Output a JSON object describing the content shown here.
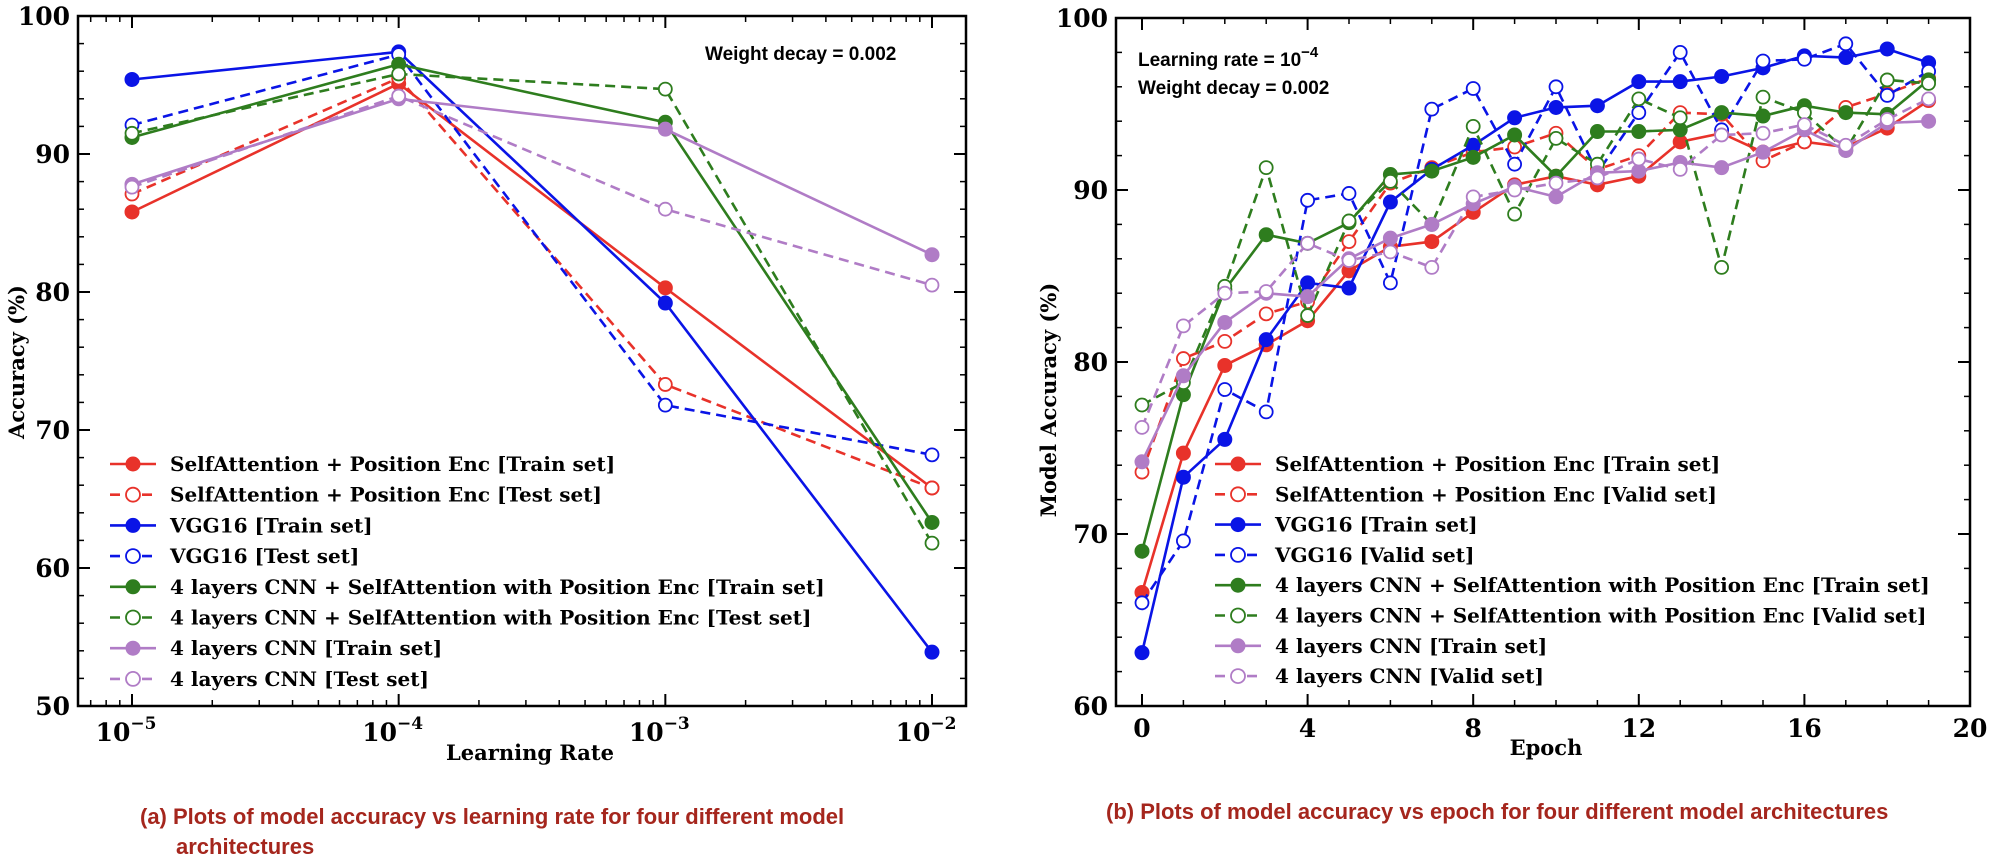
{
  "chart_data": [
    {
      "type": "line",
      "xscale": "log",
      "xlabel": "Learning Rate",
      "ylabel": "Accuracy (%)",
      "x": [
        1e-05,
        0.0001,
        0.001,
        0.01
      ],
      "xticks": [
        {
          "base": "10",
          "exp": "−5"
        },
        {
          "base": "10",
          "exp": "−4"
        },
        {
          "base": "10",
          "exp": "−3"
        },
        {
          "base": "10",
          "exp": "−2"
        }
      ],
      "yticks": [
        "50",
        "60",
        "70",
        "80",
        "90",
        "100"
      ],
      "ylim": [
        50,
        100
      ],
      "annotation": "Weight decay = 0.002",
      "legend_position": "lower-left",
      "series": [
        {
          "name": "SelfAttention + Position Enc [Train set]",
          "color": "#e8322a",
          "dashed": false,
          "values": [
            85.8,
            95.1,
            80.3,
            65.8
          ]
        },
        {
          "name": "SelfAttention + Position Enc [Test set]",
          "color": "#e8322a",
          "dashed": true,
          "values": [
            87.1,
            95.5,
            73.3,
            65.8
          ]
        },
        {
          "name": "VGG16 [Train set]",
          "color": "#0a14e6",
          "dashed": false,
          "values": [
            95.4,
            97.4,
            79.2,
            53.9
          ]
        },
        {
          "name": "VGG16 [Test set]",
          "color": "#0a14e6",
          "dashed": true,
          "values": [
            92.1,
            97.2,
            71.8,
            68.2
          ]
        },
        {
          "name": "4 layers CNN + SelfAttention with Position Enc [Train set]",
          "color": "#2e7d1e",
          "dashed": false,
          "values": [
            91.2,
            96.5,
            92.3,
            63.3
          ]
        },
        {
          "name": "4 layers CNN + SelfAttention with Position Enc [Test set]",
          "color": "#2e7d1e",
          "dashed": true,
          "values": [
            91.5,
            95.8,
            94.7,
            61.8
          ]
        },
        {
          "name": "4 layers CNN [Train set]",
          "color": "#b07cc6",
          "dashed": false,
          "values": [
            87.8,
            94.0,
            91.8,
            82.7
          ]
        },
        {
          "name": "4 layers CNN [Test set]",
          "color": "#b07cc6",
          "dashed": true,
          "values": [
            87.6,
            94.2,
            86.0,
            80.5
          ]
        }
      ]
    },
    {
      "type": "line",
      "xlabel": "Epoch",
      "ylabel": "Model Accuracy (%)",
      "x": [
        0,
        1,
        2,
        3,
        4,
        5,
        6,
        7,
        8,
        9,
        10,
        11,
        12,
        13,
        14,
        15,
        16,
        17,
        18,
        19
      ],
      "xticks": [
        "0",
        "4",
        "8",
        "12",
        "16",
        "20"
      ],
      "xlim": [
        -0.5,
        20
      ],
      "yticks": [
        "60",
        "70",
        "80",
        "90",
        "100"
      ],
      "ylim": [
        60,
        100
      ],
      "annotation_lines": [
        {
          "text": "Learning rate = 10",
          "sup": "−4"
        },
        {
          "text": "Weight decay = 0.002",
          "sup": ""
        }
      ],
      "legend_position": "lower-left",
      "series": [
        {
          "name": "SelfAttention + Position Enc [Train set]",
          "color": "#e8322a",
          "dashed": false,
          "values": [
            66.6,
            74.7,
            79.8,
            81.0,
            82.4,
            85.3,
            86.7,
            87.0,
            88.7,
            90.3,
            90.8,
            90.3,
            90.8,
            92.8,
            93.3,
            92.2,
            92.8,
            92.5,
            93.6,
            95.2
          ]
        },
        {
          "name": "SelfAttention + Position Enc [Valid set]",
          "color": "#e8322a",
          "dashed": true,
          "values": [
            73.6,
            80.2,
            81.2,
            82.8,
            83.5,
            87.0,
            90.4,
            91.3,
            92.2,
            92.5,
            93.3,
            91.2,
            92.0,
            94.5,
            94.4,
            91.7,
            92.8,
            94.8,
            95.6,
            96.5
          ]
        },
        {
          "name": "VGG16 [Train set]",
          "color": "#0a14e6",
          "dashed": false,
          "values": [
            63.1,
            73.3,
            75.5,
            81.3,
            84.6,
            84.3,
            89.3,
            91.2,
            92.6,
            94.2,
            94.8,
            94.9,
            96.3,
            96.3,
            96.6,
            97.1,
            97.8,
            97.7,
            98.2,
            97.4
          ]
        },
        {
          "name": "VGG16 [Valid set]",
          "color": "#0a14e6",
          "dashed": true,
          "values": [
            66.0,
            69.6,
            78.4,
            77.1,
            89.4,
            89.8,
            84.6,
            94.7,
            95.9,
            91.5,
            96.0,
            91.0,
            94.5,
            98.0,
            93.5,
            97.5,
            97.6,
            98.5,
            95.5,
            96.9
          ]
        },
        {
          "name": "4 layers CNN + SelfAttention with Position Enc [Train set]",
          "color": "#2e7d1e",
          "dashed": false,
          "values": [
            69.0,
            78.1,
            84.2,
            87.4,
            86.9,
            88.1,
            90.9,
            91.1,
            91.9,
            93.2,
            90.8,
            93.4,
            93.4,
            93.5,
            94.5,
            94.3,
            94.9,
            94.5,
            94.4,
            96.4
          ]
        },
        {
          "name": "4 layers CNN + SelfAttention with Position Enc [Valid set]",
          "color": "#2e7d1e",
          "dashed": true,
          "values": [
            77.5,
            78.8,
            84.4,
            91.3,
            82.7,
            88.2,
            90.5,
            88.0,
            93.7,
            88.6,
            93.0,
            91.5,
            95.3,
            94.2,
            85.5,
            95.4,
            94.5,
            92.3,
            96.4,
            96.2
          ]
        },
        {
          "name": "4 layers CNN [Train set]",
          "color": "#b07cc6",
          "dashed": false,
          "values": [
            74.2,
            79.2,
            82.3,
            84.0,
            83.8,
            86.0,
            87.2,
            88.0,
            89.2,
            90.2,
            89.6,
            91.0,
            91.1,
            91.6,
            91.3,
            92.2,
            93.5,
            92.3,
            93.9,
            94.0
          ]
        },
        {
          "name": "4 layers CNN [Valid set]",
          "color": "#b07cc6",
          "dashed": true,
          "values": [
            76.2,
            82.1,
            84.0,
            84.1,
            86.9,
            85.9,
            86.4,
            85.5,
            89.6,
            90.0,
            90.4,
            90.7,
            91.8,
            91.2,
            93.2,
            93.3,
            93.8,
            92.6,
            94.1,
            95.3
          ]
        }
      ]
    }
  ],
  "captions": {
    "left_line1": "(a) Plots of model accuracy vs learning rate for four different model",
    "left_line2": "architectures",
    "right": "(b) Plots of model accuracy vs epoch for four different model architectures"
  }
}
